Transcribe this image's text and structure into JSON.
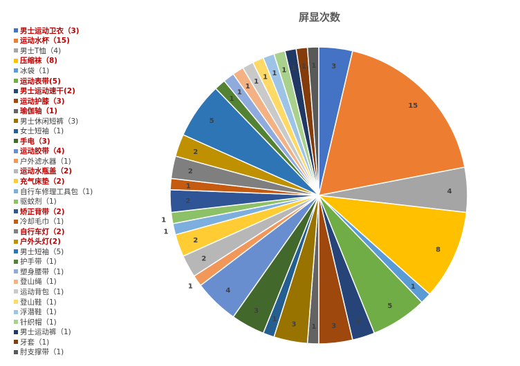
{
  "chart_data": {
    "type": "pie",
    "title": "屏显次数",
    "legend_position": "left",
    "slices": [
      {
        "label": "男士运动卫衣（3)",
        "value": 3,
        "color": "#4472C4",
        "highlight": true
      },
      {
        "label": "运动水杯（15)",
        "value": 15,
        "color": "#ED7D31",
        "highlight": true
      },
      {
        "label": "男士T恤（4)",
        "value": 4,
        "color": "#A5A5A5",
        "highlight": false
      },
      {
        "label": "压缩袜（8)",
        "value": 8,
        "color": "#FFC000",
        "highlight": true
      },
      {
        "label": "冰袋（1)",
        "value": 1,
        "color": "#5B9BD5",
        "highlight": false
      },
      {
        "label": "运动表带(5)",
        "value": 5,
        "color": "#70AD47",
        "highlight": true
      },
      {
        "label": "男士运动速干(2)",
        "value": 2,
        "color": "#264478",
        "highlight": true
      },
      {
        "label": "运动护膝（3)",
        "value": 3,
        "color": "#9E480E",
        "highlight": true
      },
      {
        "label": "瑜伽轴（1)",
        "value": 1,
        "color": "#636363",
        "highlight": true
      },
      {
        "label": "男士休闲短裤（3)",
        "value": 3,
        "color": "#997300",
        "highlight": false
      },
      {
        "label": "女士短袖（1)",
        "value": 1,
        "color": "#255E91",
        "highlight": false
      },
      {
        "label": "手电（3)",
        "value": 3,
        "color": "#43682B",
        "highlight": true
      },
      {
        "label": "运动胶带（4)",
        "value": 4,
        "color": "#698ED0",
        "highlight": true
      },
      {
        "label": "户外滤水器（1)",
        "value": 1,
        "color": "#F1975A",
        "highlight": false
      },
      {
        "label": "运动水瓶盖（2)",
        "value": 2,
        "color": "#B7B7B7",
        "highlight": true
      },
      {
        "label": "充气床垫（2)",
        "value": 2,
        "color": "#FFCD33",
        "highlight": true
      },
      {
        "label": "自行车修理工具包（1)",
        "value": 1,
        "color": "#7CAFDD",
        "highlight": false
      },
      {
        "label": "驱蚊剂（1)",
        "value": 1,
        "color": "#8CC168",
        "highlight": false
      },
      {
        "label": "矫正背带（2)",
        "value": 2,
        "color": "#2F5597",
        "highlight": true
      },
      {
        "label": "冷却毛巾（1)",
        "value": 1,
        "color": "#C55A11",
        "highlight": false
      },
      {
        "label": "自行车灯（2)",
        "value": 2,
        "color": "#7F7F7F",
        "highlight": true
      },
      {
        "label": "户外头灯(2)",
        "value": 2,
        "color": "#BF9000",
        "highlight": true
      },
      {
        "label": "男士短袖（5)",
        "value": 5,
        "color": "#2E75B6",
        "highlight": false
      },
      {
        "label": "护手带（1)",
        "value": 1,
        "color": "#548235",
        "highlight": false
      },
      {
        "label": "塑身腰带（1)",
        "value": 1,
        "color": "#8FAADC",
        "highlight": false
      },
      {
        "label": "登山绳（1)",
        "value": 1,
        "color": "#F4B183",
        "highlight": false
      },
      {
        "label": "运动背包（1)",
        "value": 1,
        "color": "#C9C9C9",
        "highlight": false
      },
      {
        "label": "登山鞋（1)",
        "value": 1,
        "color": "#FFD966",
        "highlight": false
      },
      {
        "label": "浮潜鞋（1)",
        "value": 1,
        "color": "#9DC3E6",
        "highlight": false
      },
      {
        "label": "针织帽（1)",
        "value": 1,
        "color": "#A9D18E",
        "highlight": false
      },
      {
        "label": "男士运动裤（1)",
        "value": 1,
        "color": "#203864",
        "highlight": false
      },
      {
        "label": "牙套（1)",
        "value": 1,
        "color": "#843C0C",
        "highlight": false
      },
      {
        "label": "肘支撑带（1)",
        "value": 1,
        "color": "#595959",
        "highlight": false
      }
    ]
  }
}
